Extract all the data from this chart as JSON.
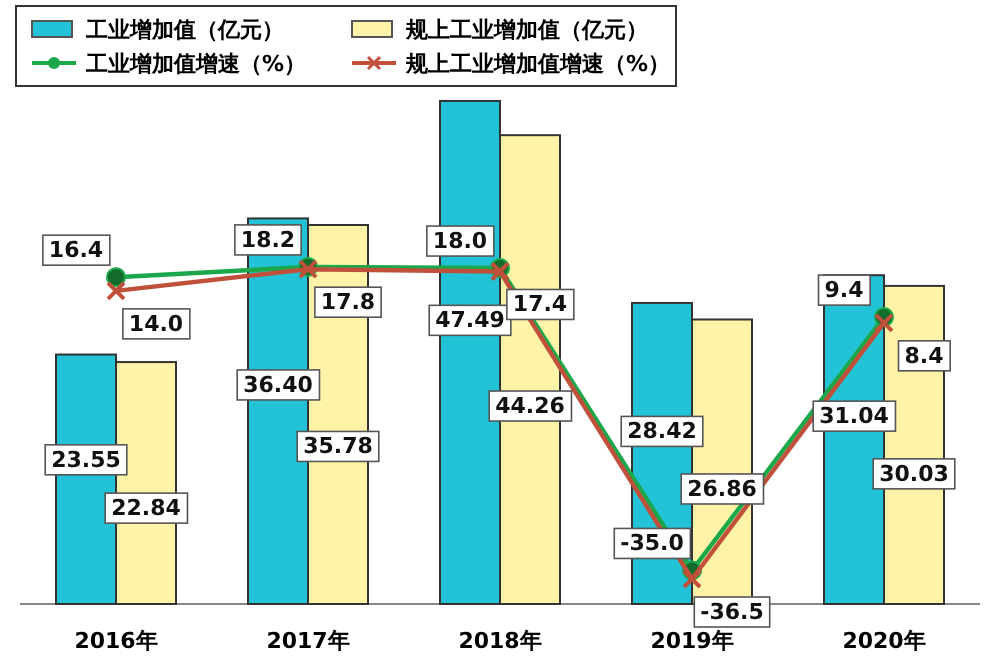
{
  "chart_data": {
    "type": "bar",
    "categories": [
      "2016年",
      "2017年",
      "2018年",
      "2019年",
      "2020年"
    ],
    "series": [
      {
        "name": "工业增加值（亿元）",
        "color": "#22c3d6",
        "values": [
          23.55,
          36.4,
          47.49,
          28.42,
          31.04
        ],
        "value_labels": [
          "23.55",
          "36.40",
          "47.49",
          "28.42",
          "31.04"
        ]
      },
      {
        "name": "规上工业增加值（亿元）",
        "color": "#fff3a8",
        "values": [
          22.84,
          35.78,
          44.26,
          26.86,
          30.03
        ],
        "value_labels": [
          "22.84",
          "35.78",
          "44.26",
          "26.86",
          "30.03"
        ]
      },
      {
        "name": "工业增加值增速（%）",
        "type": "line",
        "axis": "y2",
        "color": "#1aa84a",
        "marker": "circle",
        "values": [
          16.4,
          18.2,
          18.0,
          -35.0,
          9.4
        ],
        "value_labels": [
          "16.4",
          "18.2",
          "18.0",
          "-35.0",
          "9.4"
        ]
      },
      {
        "name": "规上工业增加值增速（%）",
        "type": "line",
        "axis": "y2",
        "color": "#c0503a",
        "marker": "cross",
        "values": [
          14.0,
          17.8,
          17.4,
          -36.5,
          8.4
        ],
        "value_labels": [
          "14.0",
          "17.8",
          "17.4",
          "-36.5",
          "8.4"
        ]
      }
    ],
    "legend": "top left"
  }
}
